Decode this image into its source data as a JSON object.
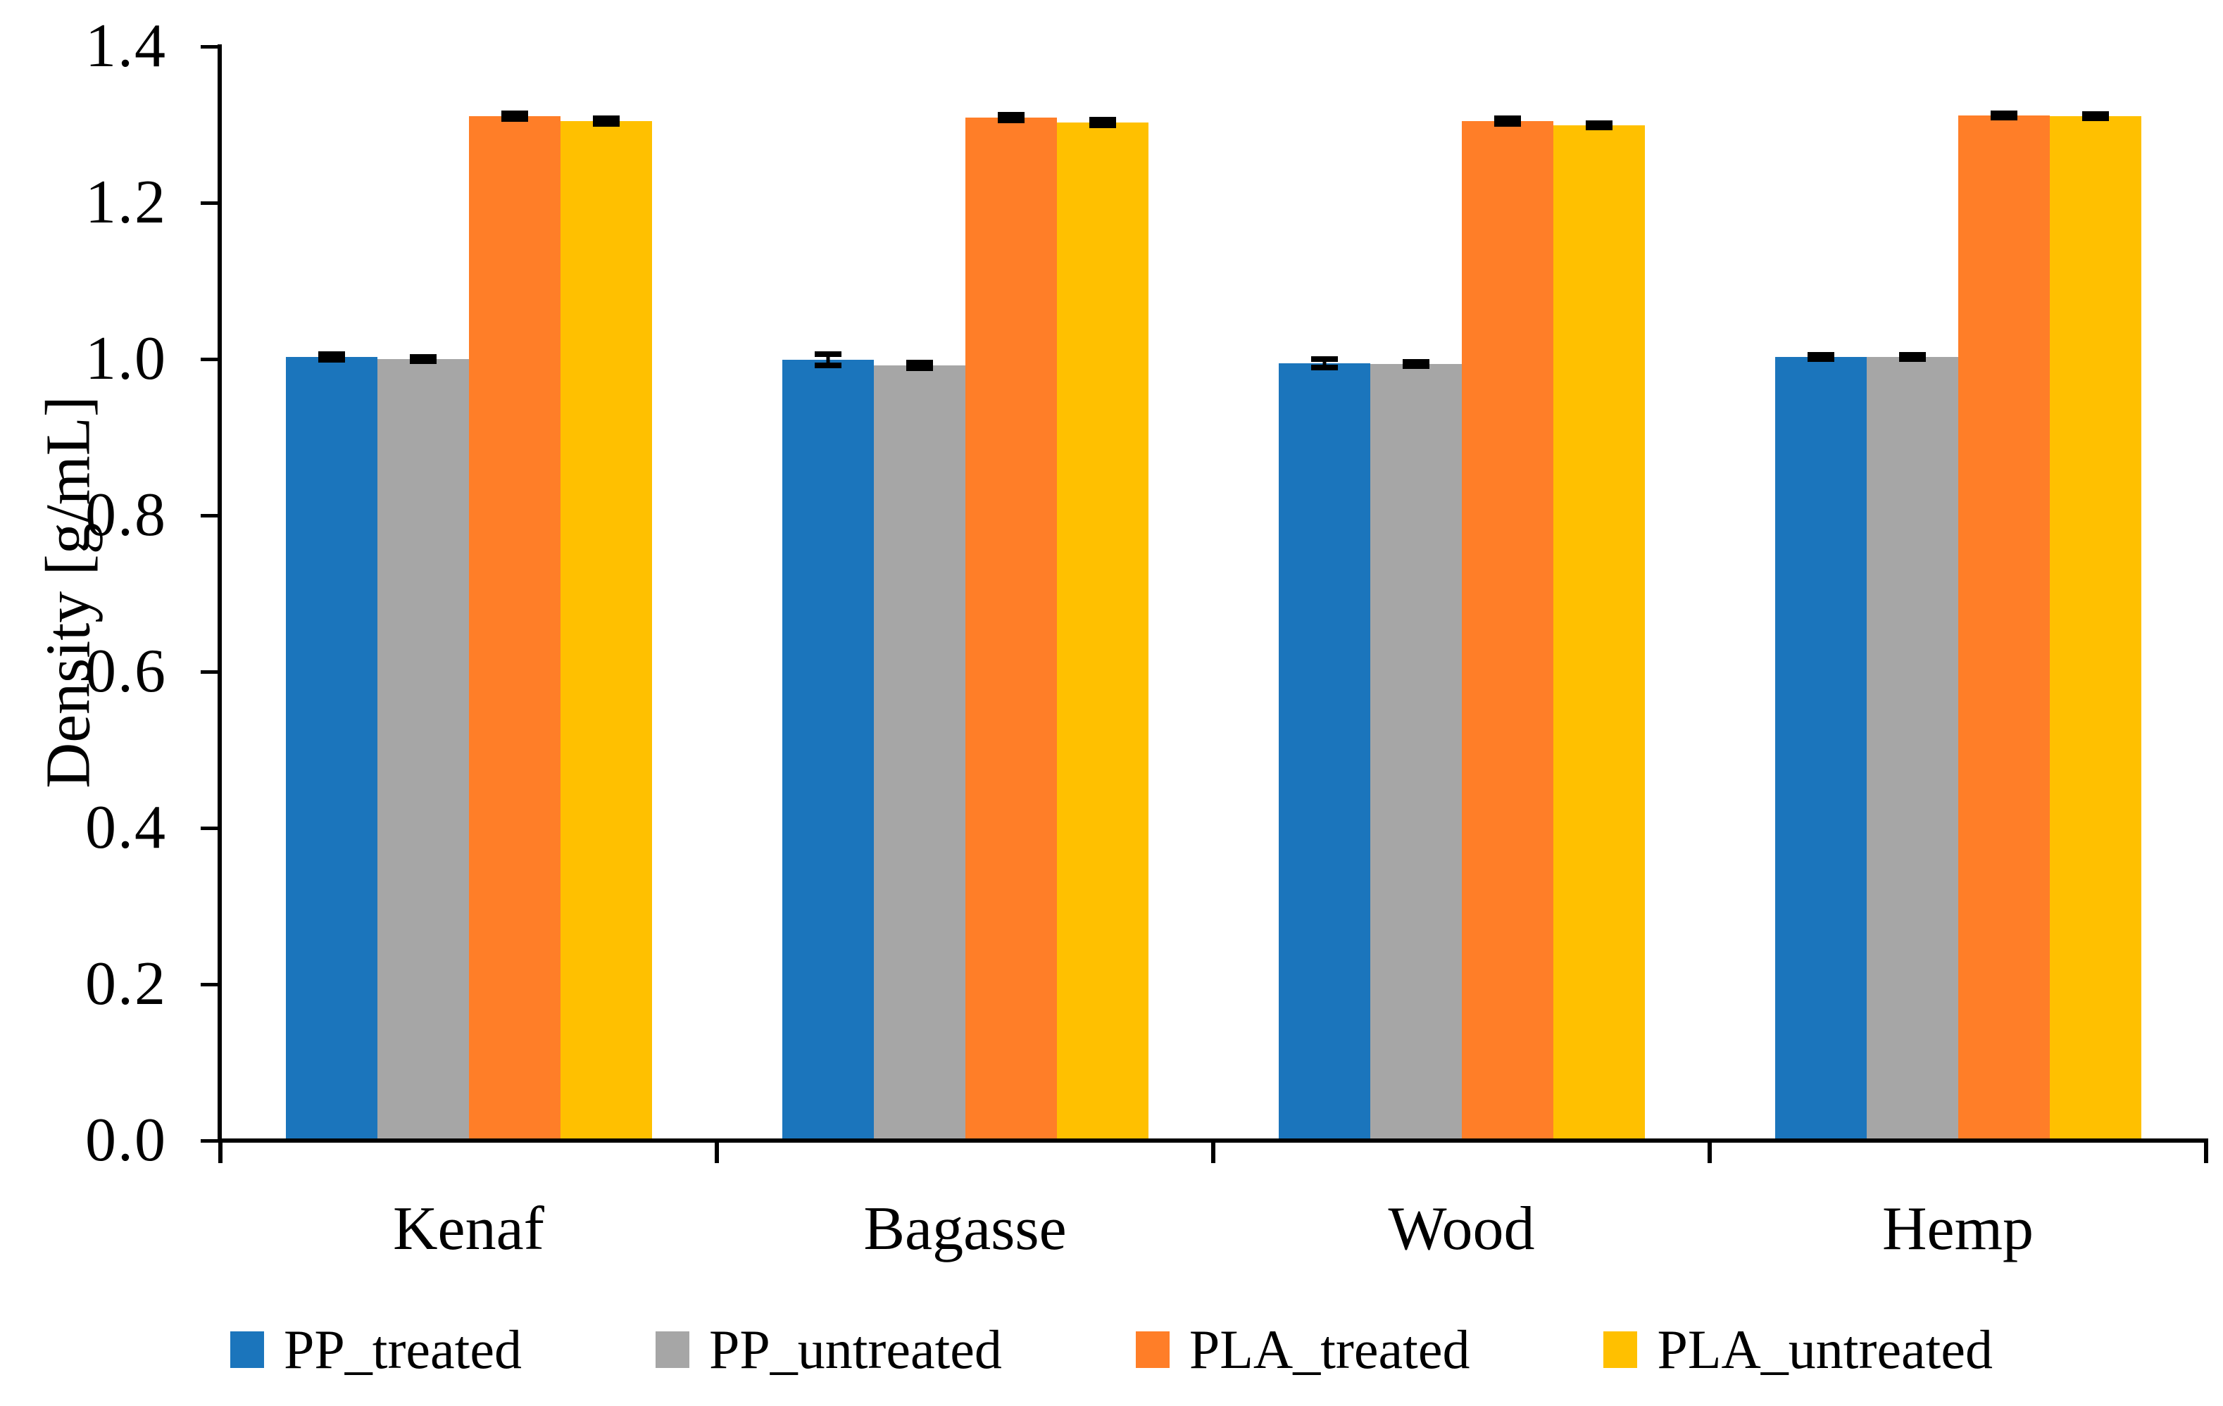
{
  "background_color": "#FFFFFF",
  "axis_color": "#000000",
  "error_bar_color": "#000000",
  "chart_data": {
    "type": "bar",
    "title": "",
    "xlabel": "",
    "ylabel": "Density [g/mL]",
    "ylim": [
      0,
      1.4
    ],
    "ytick_step": 0.2,
    "yticks": [
      "0.0",
      "0.2",
      "0.4",
      "0.6",
      "0.8",
      "1.0",
      "1.2",
      "1.4"
    ],
    "grid": false,
    "legend_position": "bottom",
    "categories": [
      "Kenaf",
      "Bagasse",
      "Wood",
      "Hemp"
    ],
    "series": [
      {
        "name": "PP_treated",
        "color": "#1B75BC",
        "values": [
          1.0,
          0.996,
          0.992,
          1.0
        ],
        "errors": [
          0.004,
          0.007,
          0.005,
          0.003
        ]
      },
      {
        "name": "PP_untreated",
        "color": "#A6A6A6",
        "values": [
          0.997,
          0.989,
          0.991,
          1.0
        ],
        "errors": [
          0.003,
          0.004,
          0.003,
          0.003
        ]
      },
      {
        "name": "PLA_treated",
        "color": "#FF7E28",
        "values": [
          1.308,
          1.306,
          1.302,
          1.309
        ],
        "errors": [
          0.004,
          0.004,
          0.004,
          0.003
        ]
      },
      {
        "name": "PLA_untreated",
        "color": "#FFC000",
        "values": [
          1.302,
          1.3,
          1.296,
          1.308
        ],
        "errors": [
          0.004,
          0.004,
          0.003,
          0.003
        ]
      }
    ]
  }
}
